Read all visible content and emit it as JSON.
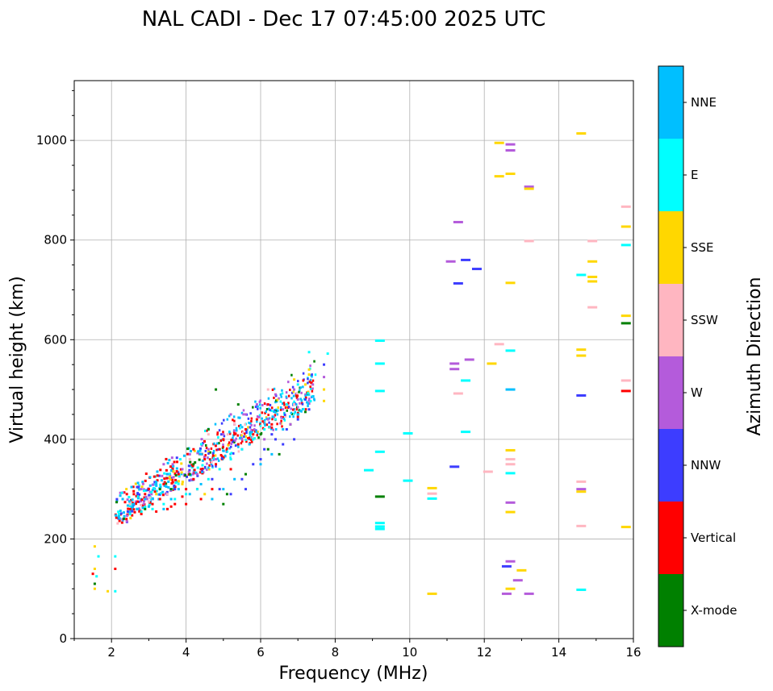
{
  "chart_data": {
    "type": "scatter",
    "title": "NAL CADI - Dec 17 07:45:00 2025 UTC",
    "xlabel": "Frequency (MHz)",
    "ylabel": "Virtual height (km)",
    "xlim": [
      1,
      16
    ],
    "ylim": [
      0,
      1120
    ],
    "xticks": [
      2,
      4,
      6,
      8,
      10,
      12,
      14,
      16
    ],
    "yticks": [
      0,
      200,
      400,
      600,
      800,
      1000
    ],
    "grid": true,
    "colorbar": {
      "title": "Azimuth Direction",
      "categories": [
        {
          "name": "X-mode",
          "color": "#008000"
        },
        {
          "name": "Vertical",
          "color": "#ff0000"
        },
        {
          "name": "NNW",
          "color": "#3d3dff"
        },
        {
          "name": "W",
          "color": "#b45bdb"
        },
        {
          "name": "SSW",
          "color": "#ffb6c1"
        },
        {
          "name": "SSE",
          "color": "#ffd700"
        },
        {
          "name": "E",
          "color": "#00ffff"
        },
        {
          "name": "NNE",
          "color": "#00bfff"
        }
      ]
    },
    "series": [
      {
        "name": "X-mode",
        "points": [
          [
            9.2,
            285
          ],
          [
            15.8,
            633
          ],
          [
            5.0,
            270
          ],
          [
            5.6,
            330
          ],
          [
            4.2,
            350
          ],
          [
            3.6,
            300
          ],
          [
            6.2,
            380
          ],
          [
            6.8,
            430
          ],
          [
            1.55,
            110
          ],
          [
            2.9,
            260
          ],
          [
            4.6,
            420
          ],
          [
            5.4,
            470
          ],
          [
            6.0,
            410
          ],
          [
            7.2,
            455
          ],
          [
            4.1,
            330
          ],
          [
            5.1,
            290
          ],
          [
            3.3,
            300
          ],
          [
            4.8,
            500
          ],
          [
            6.5,
            370
          ]
        ]
      },
      {
        "name": "Vertical",
        "points": [
          [
            15.8,
            497
          ],
          [
            1.5,
            130
          ],
          [
            2.1,
            140
          ],
          [
            2.5,
            260
          ],
          [
            2.7,
            275
          ],
          [
            2.9,
            290
          ],
          [
            3.1,
            270
          ],
          [
            3.3,
            280
          ],
          [
            3.5,
            260
          ],
          [
            3.7,
            270
          ],
          [
            3.9,
            285
          ],
          [
            4.0,
            300
          ],
          [
            4.2,
            320
          ],
          [
            4.4,
            340
          ],
          [
            4.2,
            380
          ],
          [
            4.5,
            360
          ],
          [
            4.8,
            350
          ],
          [
            5.0,
            400
          ],
          [
            5.3,
            410
          ],
          [
            5.6,
            420
          ],
          [
            5.9,
            440
          ],
          [
            6.2,
            470
          ],
          [
            2.4,
            240
          ],
          [
            2.8,
            250
          ],
          [
            3.2,
            255
          ],
          [
            3.6,
            265
          ],
          [
            4.0,
            270
          ],
          [
            4.4,
            280
          ],
          [
            4.7,
            300
          ],
          [
            5.2,
            340
          ],
          [
            3.0,
            300
          ],
          [
            3.4,
            310
          ],
          [
            3.8,
            330
          ],
          [
            2.6,
            290
          ],
          [
            4.9,
            380
          ],
          [
            5.8,
            410
          ],
          [
            6.3,
            430
          ],
          [
            7.0,
            445
          ],
          [
            5.4,
            390
          ],
          [
            4.3,
            300
          ]
        ]
      },
      {
        "name": "NNW",
        "points": [
          [
            11.3,
            713
          ],
          [
            11.5,
            760
          ],
          [
            11.8,
            742
          ],
          [
            11.2,
            345
          ],
          [
            12.6,
            145
          ],
          [
            14.6,
            488
          ],
          [
            5.2,
            290
          ],
          [
            5.5,
            320
          ],
          [
            5.8,
            350
          ],
          [
            6.1,
            380
          ],
          [
            6.4,
            400
          ],
          [
            6.7,
            420
          ],
          [
            7.0,
            440
          ],
          [
            7.3,
            460
          ],
          [
            7.7,
            550
          ],
          [
            4.9,
            300
          ],
          [
            6.0,
            360
          ],
          [
            6.6,
            390
          ],
          [
            7.2,
            480
          ],
          [
            5.6,
            300
          ],
          [
            6.9,
            400
          ],
          [
            4.7,
            320
          ],
          [
            3.7,
            300
          ],
          [
            6.3,
            410
          ]
        ]
      },
      {
        "name": "W",
        "points": [
          [
            11.3,
            836
          ],
          [
            11.1,
            757
          ],
          [
            11.2,
            552
          ],
          [
            11.2,
            541
          ],
          [
            11.6,
            560
          ],
          [
            12.7,
            992
          ],
          [
            12.7,
            980
          ],
          [
            13.2,
            907
          ],
          [
            12.7,
            273
          ],
          [
            12.7,
            155
          ],
          [
            12.9,
            117
          ],
          [
            13.2,
            90
          ],
          [
            12.6,
            90
          ],
          [
            14.6,
            300
          ],
          [
            4.6,
            380
          ],
          [
            5.0,
            410
          ],
          [
            5.3,
            430
          ],
          [
            5.6,
            450
          ],
          [
            5.9,
            470
          ],
          [
            6.2,
            440
          ],
          [
            6.6,
            460
          ],
          [
            7.0,
            480
          ],
          [
            7.4,
            510
          ],
          [
            4.3,
            330
          ],
          [
            4.8,
            360
          ],
          [
            5.5,
            380
          ],
          [
            6.1,
            400
          ],
          [
            6.8,
            430
          ],
          [
            7.7,
            525
          ],
          [
            6.4,
            490
          ],
          [
            3.9,
            340
          ],
          [
            5.2,
            450
          ],
          [
            6.9,
            500
          ],
          [
            4.1,
            370
          ],
          [
            2.8,
            300
          ],
          [
            3.4,
            350
          ]
        ]
      },
      {
        "name": "SSW",
        "points": [
          [
            15.8,
            867
          ],
          [
            15.8,
            518
          ],
          [
            14.9,
            798
          ],
          [
            14.9,
            665
          ],
          [
            14.6,
            315
          ],
          [
            14.6,
            226
          ],
          [
            12.1,
            335
          ],
          [
            12.4,
            591
          ],
          [
            13.2,
            798
          ],
          [
            11.3,
            492
          ],
          [
            10.6,
            291
          ],
          [
            12.7,
            350
          ],
          [
            12.7,
            360
          ],
          [
            6.2,
            500
          ],
          [
            5.3,
            430
          ],
          [
            4.6,
            410
          ],
          [
            3.5,
            290
          ],
          [
            3.0,
            275
          ],
          [
            2.5,
            270
          ],
          [
            4.1,
            360
          ],
          [
            6.9,
            470
          ]
        ]
      },
      {
        "name": "SSE",
        "points": [
          [
            12.4,
            995
          ],
          [
            12.4,
            928
          ],
          [
            12.7,
            933
          ],
          [
            12.7,
            714
          ],
          [
            12.2,
            552
          ],
          [
            12.7,
            378
          ],
          [
            12.7,
            254
          ],
          [
            12.7,
            100
          ],
          [
            13.0,
            137
          ],
          [
            14.6,
            1014
          ],
          [
            14.6,
            580
          ],
          [
            14.6,
            568
          ],
          [
            14.6,
            295
          ],
          [
            15.8,
            827
          ],
          [
            15.8,
            648
          ],
          [
            15.8,
            224
          ],
          [
            14.9,
            757
          ],
          [
            14.9,
            726
          ],
          [
            14.9,
            717
          ],
          [
            10.6,
            302
          ],
          [
            10.6,
            90
          ],
          [
            7.7,
            500
          ],
          [
            7.7,
            477
          ],
          [
            7.3,
            540
          ],
          [
            7.3,
            530
          ],
          [
            1.55,
            185
          ],
          [
            1.55,
            140
          ],
          [
            1.55,
            100
          ],
          [
            1.9,
            95
          ],
          [
            6.9,
            520
          ],
          [
            7.2,
            510
          ],
          [
            4.5,
            290
          ],
          [
            3.9,
            310
          ],
          [
            3.2,
            290
          ],
          [
            2.4,
            300
          ],
          [
            13.2,
            903
          ]
        ]
      },
      {
        "name": "E",
        "points": [
          [
            9.2,
            598
          ],
          [
            9.2,
            552
          ],
          [
            9.2,
            497
          ],
          [
            9.2,
            375
          ],
          [
            9.2,
            232
          ],
          [
            9.2,
            220
          ],
          [
            9.2,
            225
          ],
          [
            8.9,
            338
          ],
          [
            9.95,
            412
          ],
          [
            9.95,
            317
          ],
          [
            10.6,
            281
          ],
          [
            11.5,
            518
          ],
          [
            11.5,
            415
          ],
          [
            12.7,
            578
          ],
          [
            12.7,
            332
          ],
          [
            14.6,
            730
          ],
          [
            14.6,
            98
          ],
          [
            15.8,
            790
          ],
          [
            7.3,
            575
          ],
          [
            7.8,
            572
          ],
          [
            7.0,
            510
          ],
          [
            6.7,
            470
          ],
          [
            6.4,
            440
          ],
          [
            6.1,
            420
          ],
          [
            5.8,
            400
          ],
          [
            5.5,
            380
          ],
          [
            5.2,
            360
          ],
          [
            4.9,
            340
          ],
          [
            4.6,
            320
          ],
          [
            4.3,
            300
          ],
          [
            4.0,
            290
          ],
          [
            3.7,
            280
          ],
          [
            3.4,
            270
          ],
          [
            3.1,
            260
          ],
          [
            2.8,
            255
          ],
          [
            2.5,
            250
          ],
          [
            2.2,
            250
          ],
          [
            1.65,
            165
          ],
          [
            2.1,
            165
          ],
          [
            1.6,
            125
          ],
          [
            2.1,
            95
          ]
        ]
      },
      {
        "name": "NNE",
        "points": [
          [
            12.7,
            500
          ],
          [
            5.0,
            300
          ],
          [
            5.3,
            320
          ],
          [
            4.7,
            280
          ],
          [
            4.4,
            310
          ],
          [
            3.8,
            300
          ],
          [
            3.5,
            330
          ],
          [
            3.2,
            310
          ],
          [
            2.9,
            280
          ],
          [
            2.6,
            270
          ],
          [
            2.3,
            280
          ],
          [
            6.0,
            350
          ],
          [
            6.3,
            370
          ],
          [
            5.7,
            390
          ],
          [
            3.4,
            260
          ],
          [
            3.0,
            265
          ],
          [
            4.1,
            290
          ],
          [
            6.6,
            420
          ],
          [
            7.0,
            450
          ],
          [
            2.7,
            260
          ],
          [
            3.6,
            280
          ]
        ]
      }
    ]
  }
}
